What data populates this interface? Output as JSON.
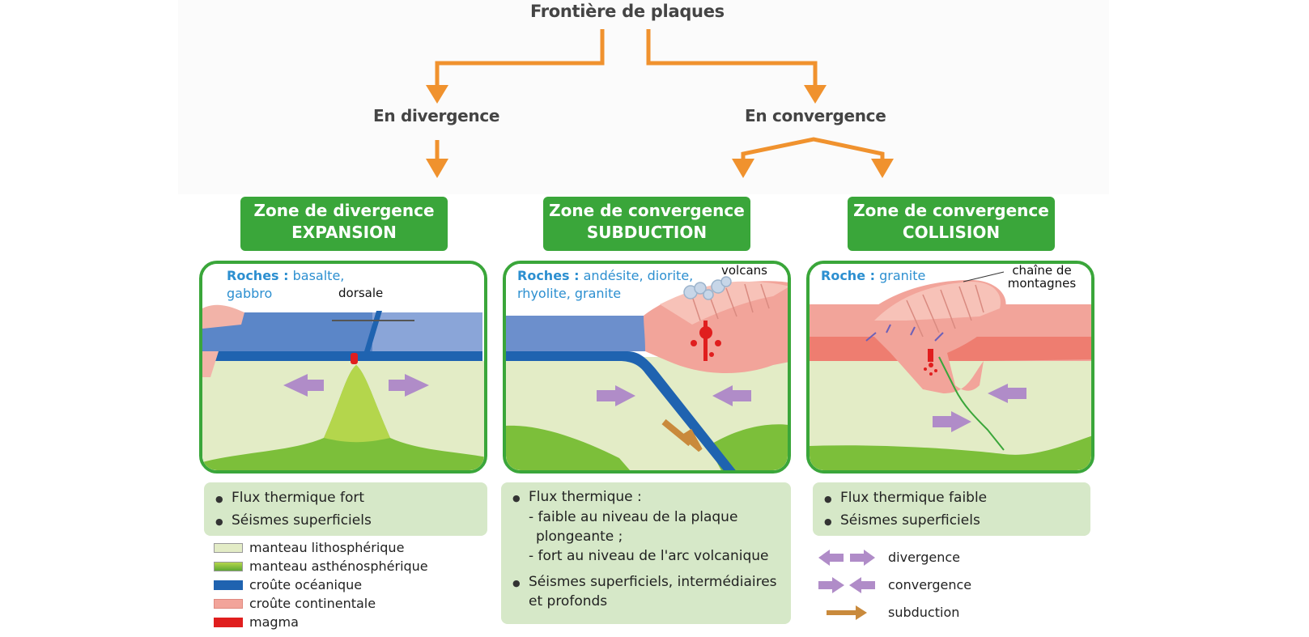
{
  "title": "Frontière de plaques",
  "branches": {
    "left": "En divergence",
    "right": "En convergence"
  },
  "zones": [
    {
      "line1": "Zone de divergence",
      "line2": "EXPANSION",
      "rocks_label": "Roches :",
      "rocks_value": "basalte, gabbro",
      "annotation": "dorsale",
      "info": [
        "Flux thermique fort",
        "Séismes superficiels"
      ]
    },
    {
      "line1": "Zone de convergence",
      "line2": "SUBDUCTION",
      "rocks_label": "Roches :",
      "rocks_value": "andésite, diorite, rhyolite, granite",
      "annotation": "volcans",
      "info_title": "Flux thermique :",
      "info_sub1": "- faible au niveau de la plaque",
      "info_sub1b": "plongeante ;",
      "info_sub2": "- fort au niveau de l'arc volcanique",
      "info_last": "Séismes superficiels, intermédiaires et profonds"
    },
    {
      "line1": "Zone de convergence",
      "line2": "COLLISION",
      "rocks_label": "Roche :",
      "rocks_value": "granite",
      "annotation": "chaîne de montagnes",
      "info": [
        "Flux thermique faible",
        "Séismes superficiels"
      ]
    }
  ],
  "legend_layers": [
    {
      "label": "manteau lithosphérique",
      "color": "#e3ecc6"
    },
    {
      "label": "manteau asthénosphérique",
      "color": "#7cbf3a"
    },
    {
      "label": "croûte océanique",
      "color": "#1f63b0"
    },
    {
      "label": "croûte continentale",
      "color": "#f2a49a"
    },
    {
      "label": "magma",
      "color": "#e01e1e"
    }
  ],
  "legend_arrows": [
    {
      "label": "divergence",
      "icon": "divergence-arrows-icon"
    },
    {
      "label": "convergence",
      "icon": "convergence-arrows-icon"
    },
    {
      "label": "subduction",
      "icon": "subduction-arrow-icon"
    }
  ],
  "colors": {
    "green": "#3aa63a",
    "orange": "#f0922e",
    "purple": "#b08cc8",
    "brown": "#c98a3c"
  }
}
